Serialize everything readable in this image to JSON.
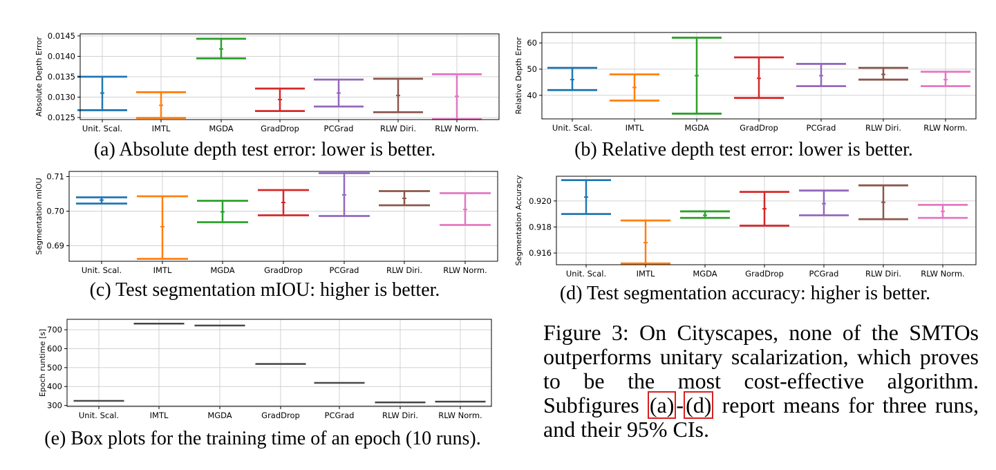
{
  "categories": [
    "Unit. Scal.",
    "IMTL",
    "MGDA",
    "GradDrop",
    "PCGrad",
    "RLW Diri.",
    "RLW Norm."
  ],
  "colors": [
    "#1f77b4",
    "#ff7f0e",
    "#2ca02c",
    "#d62728",
    "#9467bd",
    "#8c564b",
    "#e377c2"
  ],
  "chart_data": [
    {
      "id": "a",
      "type": "errorbar",
      "ylabel": "Absolute Depth Error",
      "ylim": [
        0.01245,
        0.01455
      ],
      "yticks": [
        0.0125,
        0.013,
        0.0135,
        0.014,
        0.0145
      ],
      "ytick_labels": [
        "0.0125",
        "0.0130",
        "0.0135",
        "0.0140",
        "0.0145"
      ],
      "caption": "(a) Absolute depth test error: lower is better.",
      "means": [
        0.0131,
        0.0128,
        0.01418,
        0.01294,
        0.0131,
        0.01304,
        0.01302
      ],
      "lower": [
        0.01268,
        0.01249,
        0.01395,
        0.01266,
        0.01277,
        0.01263,
        0.01246
      ],
      "upper": [
        0.0135,
        0.01312,
        0.01443,
        0.01321,
        0.01343,
        0.01345,
        0.01356
      ],
      "grid": true
    },
    {
      "id": "b",
      "type": "errorbar",
      "ylabel": "Relative Depth Error",
      "ylim": [
        31,
        64
      ],
      "yticks": [
        40,
        50,
        60
      ],
      "ytick_labels": [
        "40",
        "50",
        "60"
      ],
      "caption": "(b) Relative depth test error: lower is better.",
      "means": [
        46.0,
        43.0,
        47.5,
        46.5,
        47.5,
        48.0,
        46.0
      ],
      "lower": [
        42.0,
        38.0,
        33.0,
        39.0,
        43.5,
        46.0,
        43.5
      ],
      "upper": [
        50.5,
        48.0,
        62.0,
        54.5,
        52.0,
        50.5,
        49.0
      ],
      "grid": true
    },
    {
      "id": "c",
      "type": "errorbar",
      "ylabel": "Segmentation mIOU",
      "ylim": [
        0.6855,
        0.7115
      ],
      "yticks": [
        0.69,
        0.7,
        0.71
      ],
      "ytick_labels": [
        "0.69",
        "0.70",
        "0.71"
      ],
      "caption": "(c) Test segmentation mIOU: higher is better.",
      "means": [
        0.7032,
        0.6955,
        0.6998,
        0.7025,
        0.7047,
        0.7037,
        0.7005
      ],
      "lower": [
        0.7022,
        0.6862,
        0.6968,
        0.6988,
        0.6986,
        0.7017,
        0.696
      ],
      "upper": [
        0.704,
        0.7043,
        0.703,
        0.7061,
        0.711,
        0.7058,
        0.7052
      ],
      "grid": true
    },
    {
      "id": "d",
      "type": "errorbar",
      "ylabel": "Segmentation Accuracy",
      "ylim": [
        0.9151,
        0.9219
      ],
      "yticks": [
        0.916,
        0.918,
        0.92
      ],
      "ytick_labels": [
        "0.916",
        "0.918",
        "0.920"
      ],
      "caption": "(d) Test segmentation accuracy: higher is better.",
      "means": [
        0.9203,
        0.9168,
        0.9189,
        0.9194,
        0.9198,
        0.9199,
        0.9192
      ],
      "lower": [
        0.919,
        0.9152,
        0.9187,
        0.9181,
        0.9189,
        0.9186,
        0.9187
      ],
      "upper": [
        0.9216,
        0.9185,
        0.9192,
        0.9207,
        0.9208,
        0.9212,
        0.9197
      ],
      "grid": true
    },
    {
      "id": "e",
      "type": "box",
      "ylabel": "Epoch runtime [s]",
      "ylim": [
        295,
        755
      ],
      "yticks": [
        300,
        400,
        500,
        600,
        700
      ],
      "ytick_labels": [
        "300",
        "400",
        "500",
        "600",
        "700"
      ],
      "caption": "(e) Box plots for the training time of an epoch (10 runs).",
      "medians": [
        325,
        733,
        723,
        520,
        420,
        317,
        321
      ],
      "q1": [
        323,
        731,
        721,
        518,
        418,
        315,
        319
      ],
      "q3": [
        327,
        735,
        725,
        522,
        422,
        319,
        323
      ],
      "grid": true
    }
  ],
  "figure_caption": {
    "part1": "Figure 3:    On Cityscapes, none of the SMTOs outperforms unitary scalarization, which proves to be the most cost-effective algorithm.  Subfigures ",
    "ref_a": "(a)",
    "dash": "-",
    "ref_d": "(d)",
    "part2": " report means for three runs, and their 95% CIs."
  }
}
